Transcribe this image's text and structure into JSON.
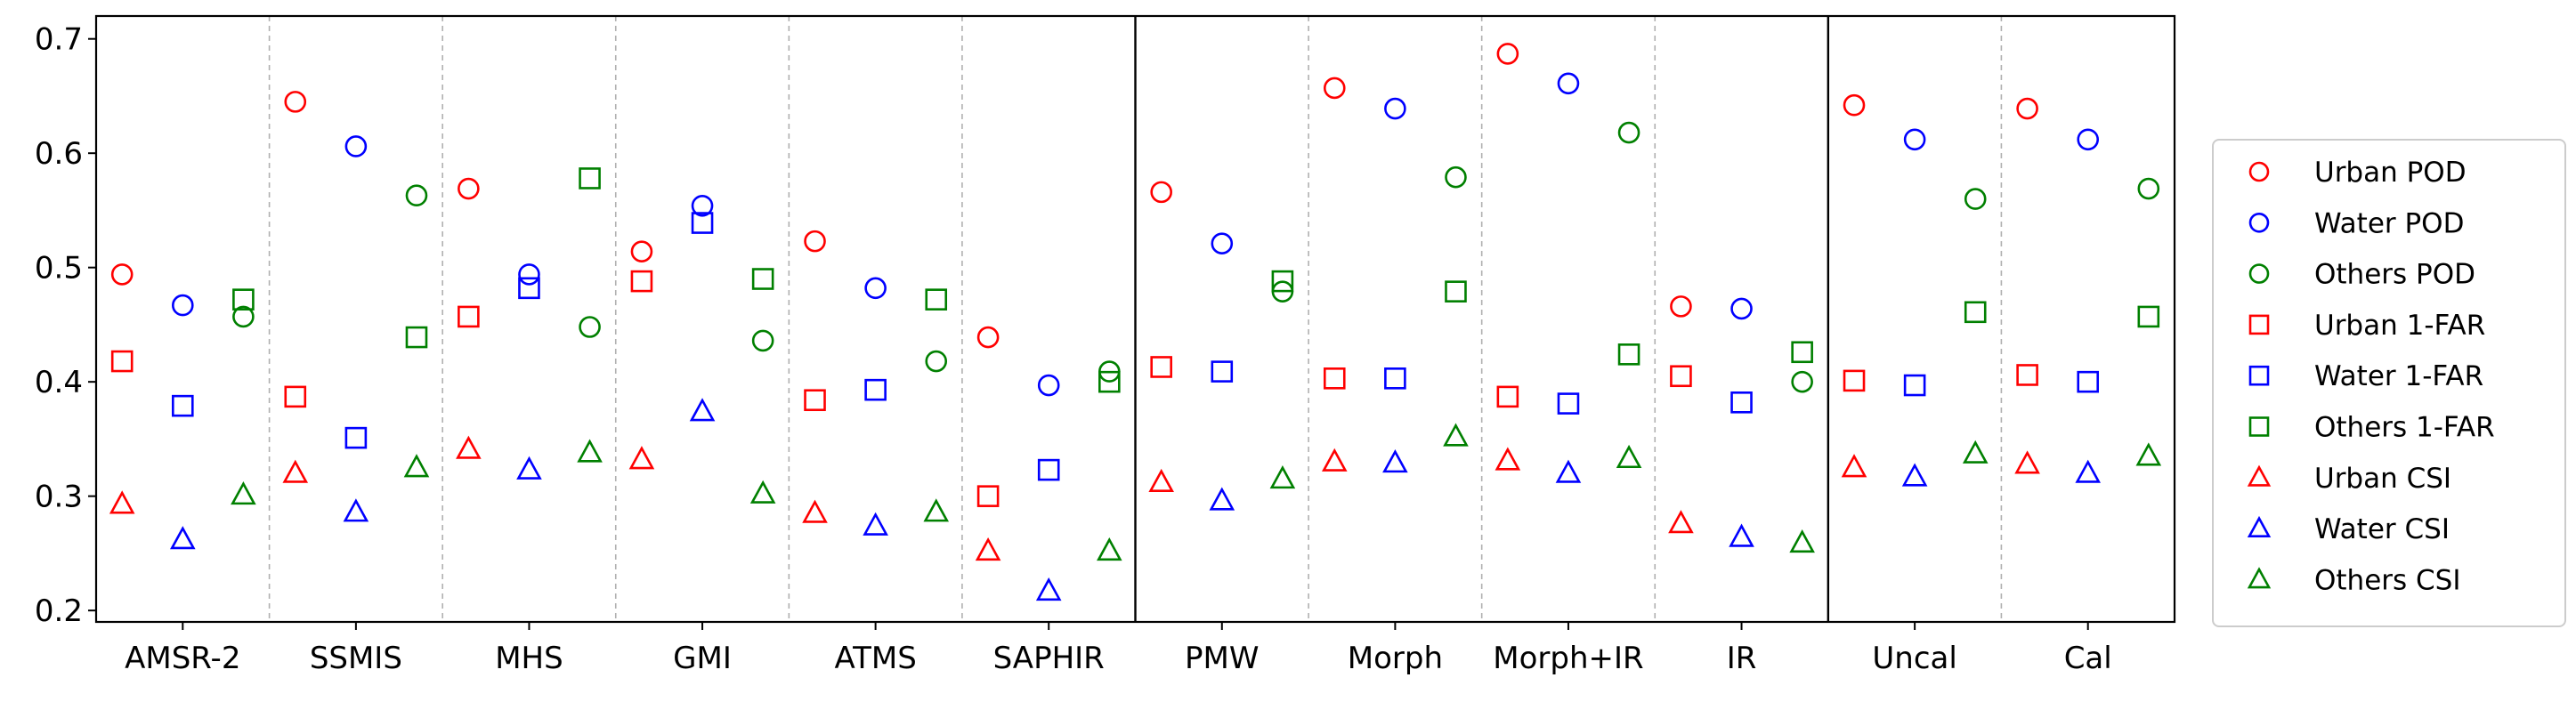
{
  "chart_data": {
    "type": "scatter",
    "title": "",
    "xlabel": "",
    "ylabel": "",
    "ylim": [
      0.19,
      0.72
    ],
    "yticks": [
      0.2,
      0.3,
      0.4,
      0.5,
      0.6,
      0.7
    ],
    "ytick_labels": [
      "0.2",
      "0.3",
      "0.4",
      "0.5",
      "0.6",
      "0.7"
    ],
    "categories": [
      "AMSR-2",
      "SSMIS",
      "MHS",
      "GMI",
      "ATMS",
      "SAPHIR",
      "PMW",
      "Morph",
      "Morph+IR",
      "IR",
      "Uncal",
      "Cal"
    ],
    "group_dividers_after": [
      5,
      9
    ],
    "grid": "dashed vertical separators between categories",
    "legend_position": "outside-right",
    "series": [
      {
        "name": "Urban POD",
        "color": "#ff0000",
        "marker": "circle",
        "values": [
          0.494,
          0.645,
          0.569,
          0.514,
          0.523,
          0.439,
          0.566,
          0.657,
          0.687,
          0.466,
          0.642,
          0.639
        ]
      },
      {
        "name": "Water POD",
        "color": "#0000ff",
        "marker": "circle",
        "values": [
          0.467,
          0.606,
          0.494,
          0.554,
          0.482,
          0.397,
          0.521,
          0.639,
          0.661,
          0.464,
          0.612,
          0.612
        ]
      },
      {
        "name": "Others POD",
        "color": "#008000",
        "marker": "circle",
        "values": [
          0.457,
          0.563,
          0.448,
          0.436,
          0.418,
          0.409,
          0.479,
          0.579,
          0.618,
          0.4,
          0.56,
          0.569
        ]
      },
      {
        "name": "Urban 1-FAR",
        "color": "#ff0000",
        "marker": "square",
        "values": [
          0.418,
          0.387,
          0.457,
          0.488,
          0.384,
          0.3,
          0.413,
          0.403,
          0.387,
          0.405,
          0.401,
          0.406
        ]
      },
      {
        "name": "Water 1-FAR",
        "color": "#0000ff",
        "marker": "square",
        "values": [
          0.379,
          0.351,
          0.482,
          0.539,
          0.393,
          0.323,
          0.409,
          0.403,
          0.381,
          0.382,
          0.397,
          0.4
        ]
      },
      {
        "name": "Others 1-FAR",
        "color": "#008000",
        "marker": "square",
        "values": [
          0.472,
          0.439,
          0.578,
          0.49,
          0.472,
          0.4,
          0.488,
          0.479,
          0.424,
          0.426,
          0.461,
          0.457
        ]
      },
      {
        "name": "Urban CSI",
        "color": "#ff0000",
        "marker": "triangle",
        "values": [
          0.293,
          0.32,
          0.341,
          0.332,
          0.285,
          0.252,
          0.312,
          0.33,
          0.331,
          0.276,
          0.325,
          0.328
        ]
      },
      {
        "name": "Water CSI",
        "color": "#0000ff",
        "marker": "triangle",
        "values": [
          0.262,
          0.286,
          0.323,
          0.374,
          0.274,
          0.217,
          0.296,
          0.329,
          0.32,
          0.264,
          0.317,
          0.32
        ]
      },
      {
        "name": "Others CSI",
        "color": "#008000",
        "marker": "triangle",
        "values": [
          0.301,
          0.325,
          0.338,
          0.302,
          0.286,
          0.252,
          0.315,
          0.352,
          0.333,
          0.259,
          0.337,
          0.335
        ]
      }
    ]
  }
}
